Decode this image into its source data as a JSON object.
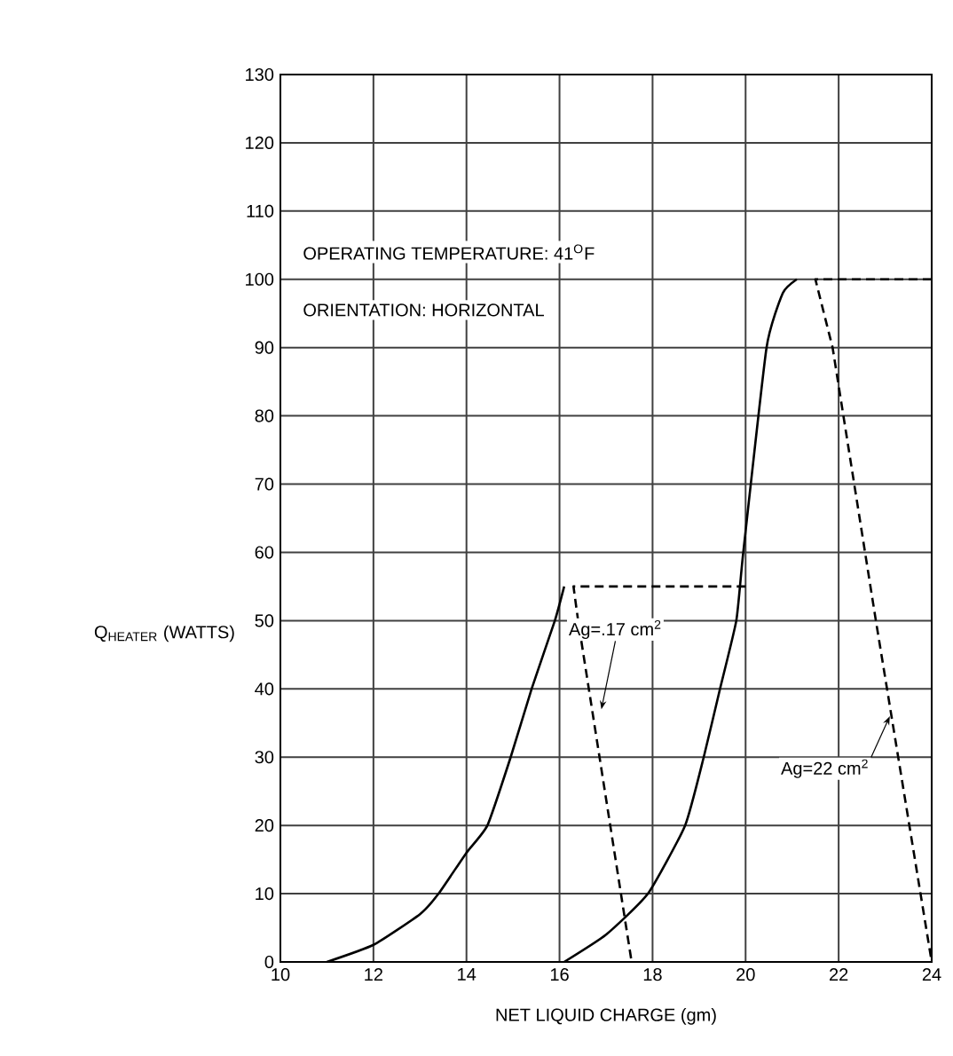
{
  "chart_data": {
    "type": "line",
    "xlabel": "NET LIQUID CHARGE (gm)",
    "ylabel": "Q$_{HEATER}$ (WATTS)",
    "xlim": [
      10,
      24
    ],
    "ylim": [
      0,
      130
    ],
    "xticks": [
      10,
      12,
      14,
      16,
      18,
      20,
      22,
      24
    ],
    "yticks": [
      0,
      10,
      20,
      30,
      40,
      50,
      60,
      70,
      80,
      90,
      100,
      110,
      120,
      130
    ],
    "grid": true,
    "series": [
      {
        "color": "#000000",
        "line_style": "solid",
        "x": [
          11,
          12,
          13,
          13.4,
          14,
          14.45,
          14.95,
          15.4,
          15.9,
          16.1
        ],
        "values": [
          0,
          2.5,
          7,
          10,
          16,
          20,
          30,
          40,
          50,
          55
        ]
      },
      {
        "color": "#000000",
        "line_style": "dashed",
        "x": [
          20,
          16.3,
          16.4,
          17.55
        ],
        "values": [
          55,
          55,
          50,
          0
        ]
      },
      {
        "color": "#000000",
        "line_style": "solid",
        "x": [
          16.1,
          17,
          17.9,
          18.7,
          19.1,
          19.45,
          19.8,
          19.95,
          20.45,
          20.8,
          21.1
        ],
        "values": [
          0,
          4,
          10,
          20,
          30,
          40,
          50,
          60,
          90,
          98,
          100
        ]
      },
      {
        "color": "#000000",
        "line_style": "dashed",
        "x": [
          24,
          21.5,
          21.87,
          22.8,
          24
        ],
        "values": [
          100,
          100,
          90,
          50,
          0
        ]
      }
    ],
    "annotations": [
      "OPERATING TEMPERATURE: 41$^{O}$F",
      "ORIENTATION: HORIZONTAL",
      {
        "text": "Ag=.17 cm$^{2}$",
        "x": 16.9,
        "y": 37
      },
      {
        "text": "Ag=22 cm$^{2}$",
        "x": 23.1,
        "y": 36
      }
    ]
  }
}
